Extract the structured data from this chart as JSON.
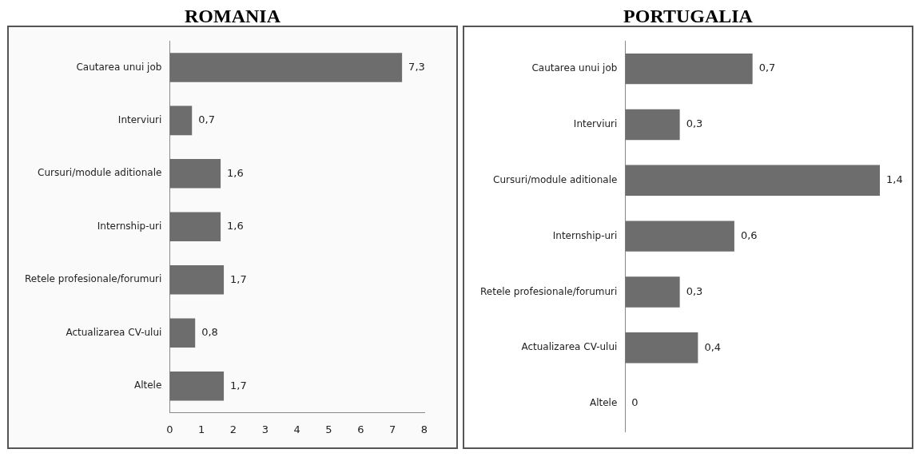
{
  "chart_data": [
    {
      "type": "bar",
      "title": "ROMANIA",
      "orientation": "horizontal",
      "categories": [
        "Cautarea unui job",
        "Interviuri",
        "Cursuri/module aditionale",
        "Internship-uri",
        "Retele profesionale/forumuri",
        "Actualizarea CV-ului",
        "Altele"
      ],
      "values": [
        7.3,
        0.7,
        1.6,
        1.6,
        1.7,
        0.8,
        1.7
      ],
      "value_labels": [
        "7,3",
        "0,7",
        "1,6",
        "1,6",
        "1,7",
        "0,8",
        "1,7"
      ],
      "color": "#6d6d6d",
      "xlim": [
        0,
        8
      ],
      "xticks": [
        0,
        1,
        2,
        3,
        4,
        5,
        6,
        7,
        8
      ],
      "grid": false,
      "legend": false
    },
    {
      "type": "bar",
      "title": "PORTUGALIA",
      "orientation": "horizontal",
      "categories": [
        "Cautarea unui job",
        "Interviuri",
        "Cursuri/module aditionale",
        "Internship-uri",
        "Retele profesionale/forumuri",
        "Actualizarea CV-ului",
        "Altele"
      ],
      "values": [
        0.7,
        0.3,
        1.4,
        0.6,
        0.3,
        0.4,
        0
      ],
      "value_labels": [
        "0,7",
        "0,3",
        "1,4",
        "0,6",
        "0,3",
        "0,4",
        "0"
      ],
      "color": "#6d6d6d",
      "tick_labels": "y",
      "grid": false,
      "legend": false
    }
  ]
}
